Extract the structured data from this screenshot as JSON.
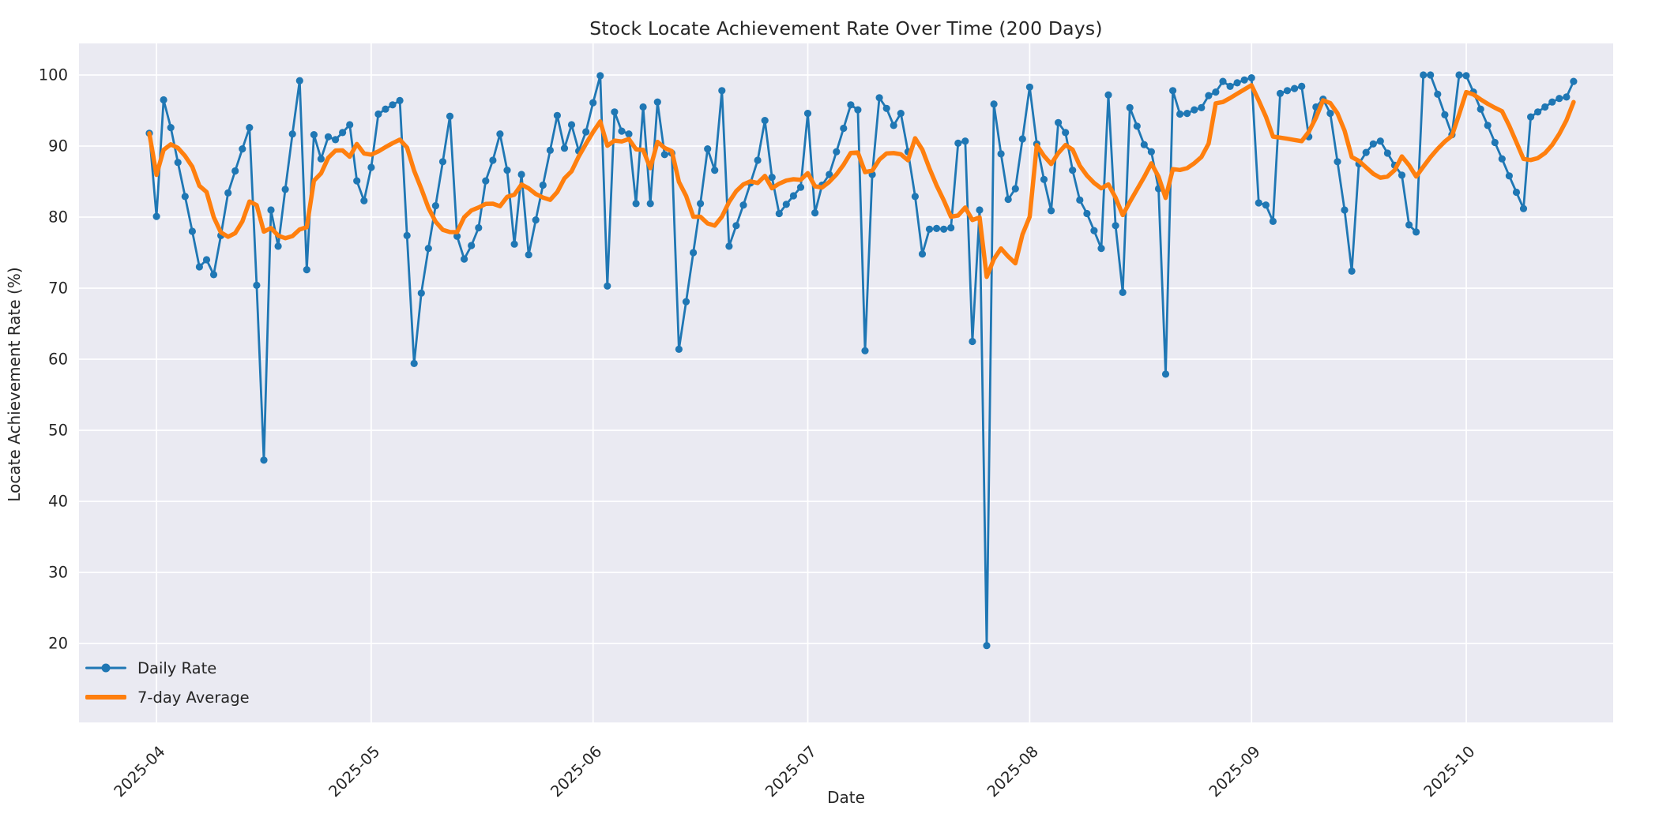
{
  "title": "Stock Locate Achievement Rate Over Time (200 Days)",
  "axes": {
    "xlabel": "Date",
    "ylabel": "Locate Achievement Rate (%)"
  },
  "legend": {
    "items": [
      {
        "label": "Daily Rate",
        "color": "#1f77b4",
        "style": "line-with-marker"
      },
      {
        "label": "7-day Average",
        "color": "#ff7f0e",
        "style": "thick-line"
      }
    ],
    "position": "lower-left",
    "frame": false
  },
  "chart_data": {
    "type": "line",
    "title": "Stock Locate Achievement Rate Over Time (200 Days)",
    "xlabel": "Date",
    "ylabel": "Locate Achievement Rate (%)",
    "n_days": 200,
    "start_date": "2025-03-31",
    "end_date": "2025-10-16",
    "x_tick_labels": [
      "2025-04",
      "2025-05",
      "2025-06",
      "2025-07",
      "2025-08",
      "2025-09",
      "2025-10"
    ],
    "x_tick_rotation_deg": 45,
    "y_ticks": [
      20,
      30,
      40,
      50,
      60,
      70,
      80,
      90,
      100
    ],
    "ylim": [
      13.8,
      104.4
    ],
    "grid": true,
    "plot_background": "#eaeaf2",
    "grid_color": "#ffffff",
    "text_color": "#262626",
    "legend_position": "lower left",
    "series": [
      {
        "name": "Daily Rate",
        "color": "#1f77b4",
        "marker": "circle",
        "line_width": 2.8,
        "values": [
          91.8,
          80.1,
          96.5,
          92.6,
          87.7,
          82.9,
          78.0,
          73.0,
          74.0,
          71.9,
          77.4,
          83.4,
          86.5,
          89.6,
          92.6,
          70.4,
          45.8,
          81.0,
          75.9,
          83.9,
          91.7,
          99.2,
          72.6,
          91.6,
          88.2,
          91.3,
          90.9,
          91.9,
          93.0,
          85.1,
          82.3,
          87.0,
          94.5,
          95.2,
          95.8,
          96.4,
          77.4,
          59.4,
          69.3,
          75.6,
          81.6,
          87.8,
          94.2,
          77.3,
          74.1,
          76.0,
          78.5,
          85.1,
          88.0,
          91.7,
          86.6,
          76.2,
          86.0,
          74.7,
          79.6,
          84.5,
          89.4,
          94.3,
          89.7,
          93.0,
          89.3,
          92.0,
          96.1,
          99.9,
          70.3,
          94.8,
          92.1,
          91.7,
          81.9,
          95.5,
          81.9,
          96.2,
          88.8,
          89.0,
          61.4,
          68.1,
          75.0,
          81.9,
          89.6,
          86.6,
          97.8,
          75.9,
          78.8,
          81.7,
          84.8,
          88.0,
          93.6,
          85.6,
          80.5,
          81.8,
          83.0,
          84.2,
          94.6,
          80.6,
          84.5,
          86.0,
          89.2,
          92.5,
          95.8,
          95.1,
          61.2,
          86.0,
          96.8,
          95.3,
          92.9,
          94.6,
          89.2,
          82.9,
          74.8,
          78.3,
          78.4,
          78.3,
          78.5,
          90.4,
          90.7,
          62.5,
          81.0,
          19.7,
          95.9,
          88.9,
          82.5,
          84.0,
          91.0,
          98.3,
          90.3,
          85.3,
          80.9,
          93.3,
          91.9,
          86.6,
          82.4,
          80.5,
          78.1,
          75.6,
          97.2,
          78.8,
          69.4,
          95.4,
          92.8,
          90.2,
          89.2,
          84.0,
          57.9,
          97.8,
          94.5,
          94.6,
          95.1,
          95.4,
          97.1,
          97.6,
          99.1,
          98.4,
          98.9,
          99.3,
          99.6,
          82.0,
          81.7,
          79.4,
          97.4,
          97.8,
          98.1,
          98.4,
          91.3,
          95.5,
          96.6,
          94.6,
          87.8,
          81.0,
          72.4,
          87.5,
          89.1,
          90.3,
          90.7,
          89.0,
          87.3,
          85.9,
          78.9,
          77.9,
          100.0,
          100.0,
          97.3,
          94.4,
          91.6,
          100.0,
          99.9,
          97.6,
          95.2,
          92.9,
          90.5,
          88.2,
          85.8,
          83.5,
          81.2,
          94.1,
          94.8,
          95.5,
          96.2,
          96.7,
          96.9,
          99.1
        ]
      },
      {
        "name": "7-day Average",
        "color": "#ff7f0e",
        "marker": "none",
        "line_width": 5.5,
        "derived": "rolling_mean_window_7_min_periods_1_of_series_0"
      }
    ]
  }
}
